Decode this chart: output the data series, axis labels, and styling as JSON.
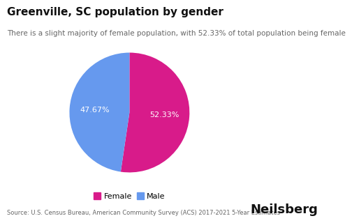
{
  "title": "Greenville, SC population by gender",
  "subtitle": "There is a slight majority of female population, with 52.33% of total population being female",
  "labels": [
    "Female",
    "Male"
  ],
  "values": [
    52.33,
    47.67
  ],
  "colors": [
    "#D81B8A",
    "#6699EE"
  ],
  "pct_labels": [
    "52.33%",
    "47.67%"
  ],
  "legend_labels": [
    "Female",
    "Male"
  ],
  "source": "Source: U.S. Census Bureau, American Community Survey (ACS) 2017-2021 5-Year Estimates",
  "brand": "Neilsberg",
  "background_color": "#ffffff",
  "text_color_on_pie": "#ffffff",
  "title_fontsize": 11,
  "subtitle_fontsize": 7.5,
  "pct_fontsize": 8,
  "legend_fontsize": 8,
  "source_fontsize": 6,
  "brand_fontsize": 13,
  "startangle": 90
}
